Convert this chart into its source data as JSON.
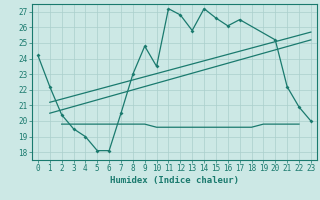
{
  "xlabel": "Humidex (Indice chaleur)",
  "bg_color": "#cce8e5",
  "line_color": "#1a7a6e",
  "grid_color": "#aacfcc",
  "xlim": [
    -0.5,
    23.5
  ],
  "ylim": [
    17.5,
    27.5
  ],
  "xticks": [
    0,
    1,
    2,
    3,
    4,
    5,
    6,
    7,
    8,
    9,
    10,
    11,
    12,
    13,
    14,
    15,
    16,
    17,
    18,
    19,
    20,
    21,
    22,
    23
  ],
  "yticks": [
    18,
    19,
    20,
    21,
    22,
    23,
    24,
    25,
    26,
    27
  ],
  "series1_x": [
    0,
    1,
    2,
    3,
    4,
    5,
    6,
    7,
    8,
    9,
    10,
    11,
    12,
    13,
    14,
    15,
    16,
    17,
    20,
    21,
    22,
    23
  ],
  "series1_y": [
    24.2,
    22.2,
    20.4,
    19.5,
    19.0,
    18.1,
    18.1,
    20.5,
    23.0,
    24.8,
    23.5,
    27.2,
    26.8,
    25.8,
    27.2,
    26.6,
    26.1,
    26.5,
    25.2,
    22.2,
    20.9,
    20.0
  ],
  "series2_x": [
    2,
    3,
    4,
    5,
    6,
    7,
    8,
    9,
    10,
    11,
    12,
    13,
    14,
    15,
    16,
    17,
    18,
    19,
    20,
    21,
    22
  ],
  "series2_y": [
    19.8,
    19.8,
    19.8,
    19.8,
    19.8,
    19.8,
    19.8,
    19.8,
    19.6,
    19.6,
    19.6,
    19.6,
    19.6,
    19.6,
    19.6,
    19.6,
    19.6,
    19.8,
    19.8,
    19.8,
    19.8
  ],
  "series3_x": [
    1,
    23
  ],
  "series3_y": [
    20.5,
    25.2
  ],
  "series4_x": [
    1,
    23
  ],
  "series4_y": [
    21.2,
    25.7
  ]
}
